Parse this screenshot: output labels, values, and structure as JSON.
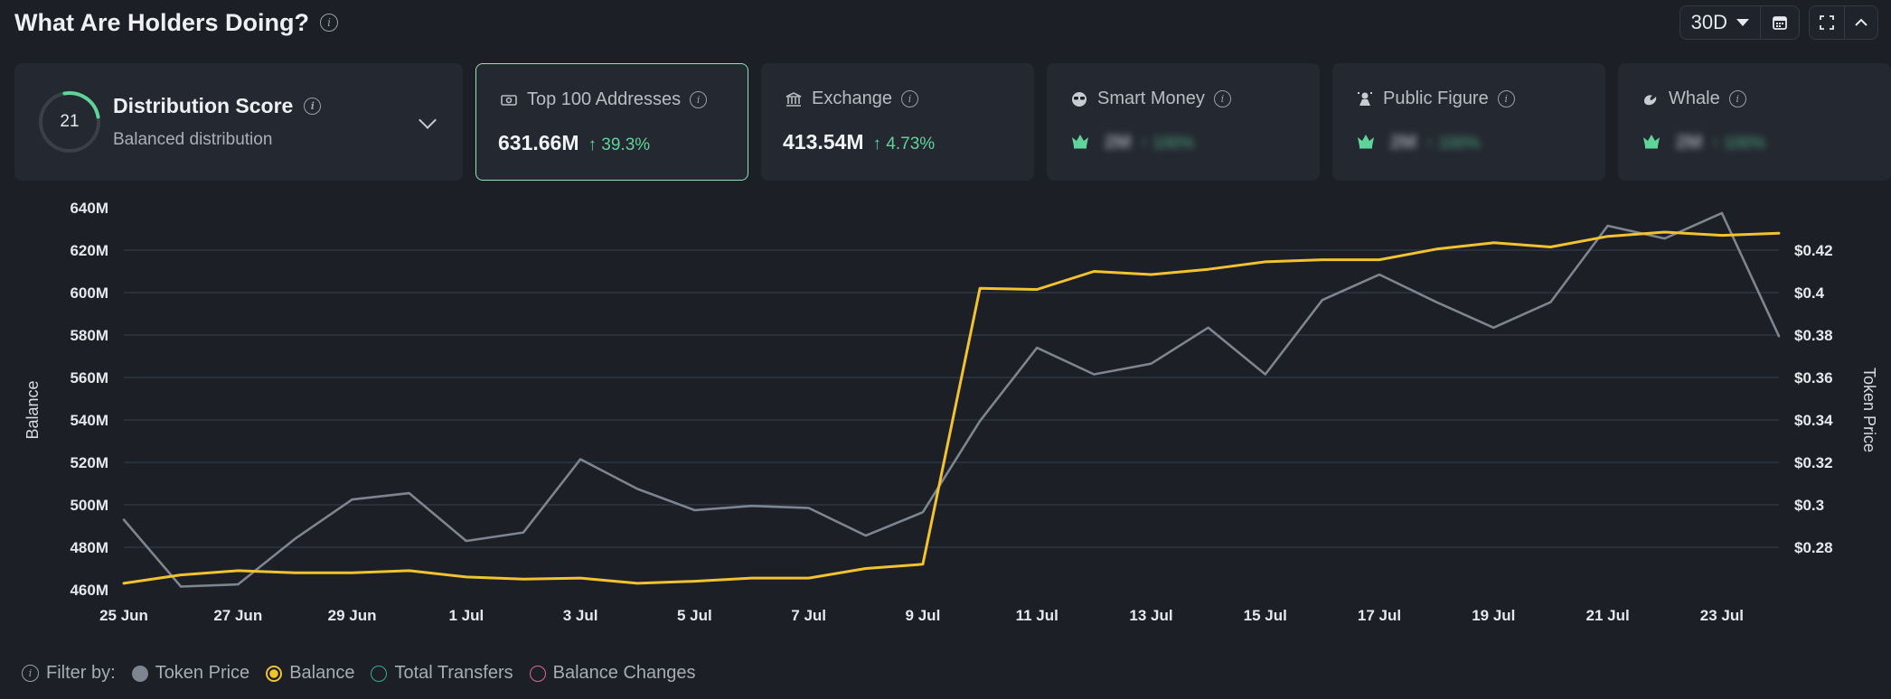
{
  "header": {
    "title": "What Are Holders Doing?"
  },
  "controls": {
    "range": "30D"
  },
  "distribution": {
    "score": "21",
    "title": "Distribution Score",
    "subtitle": "Balanced distribution"
  },
  "cards": [
    {
      "label": "Top 100 Addresses",
      "value": "631.66M",
      "change": "↑ 39.3%",
      "selected": true
    },
    {
      "label": "Exchange",
      "value": "413.54M",
      "change": "↑ 4.73%",
      "selected": false
    },
    {
      "label": "Smart Money",
      "blurred_value": "2M",
      "blurred_change": "↑ 100%"
    },
    {
      "label": "Public Figure",
      "blurred_value": "2M",
      "blurred_change": "↑ 100%"
    },
    {
      "label": "Whale",
      "blurred_value": "2M",
      "blurred_change": "↑ 100%"
    }
  ],
  "legend": {
    "filter_label": "Filter by:",
    "items": [
      {
        "name": "Token Price",
        "style": "filled",
        "color": "#7d8590"
      },
      {
        "name": "Balance",
        "style": "ring-fill",
        "color": "#f2c230"
      },
      {
        "name": "Total Transfers",
        "style": "ring",
        "color": "#3aa99f"
      },
      {
        "name": "Balance Changes",
        "style": "ring",
        "color": "#d46aa0"
      }
    ]
  },
  "chart_data": {
    "type": "line",
    "x": [
      "25 Jun",
      "26 Jun",
      "27 Jun",
      "28 Jun",
      "29 Jun",
      "30 Jun",
      "1 Jul",
      "2 Jul",
      "3 Jul",
      "4 Jul",
      "5 Jul",
      "6 Jul",
      "7 Jul",
      "8 Jul",
      "9 Jul",
      "10 Jul",
      "11 Jul",
      "12 Jul",
      "13 Jul",
      "14 Jul",
      "15 Jul",
      "16 Jul",
      "17 Jul",
      "18 Jul",
      "19 Jul",
      "20 Jul",
      "21 Jul",
      "22 Jul",
      "23 Jul",
      "24 Jul"
    ],
    "x_tick_labels": [
      "25 Jun",
      "27 Jun",
      "29 Jun",
      "1 Jul",
      "3 Jul",
      "5 Jul",
      "7 Jul",
      "9 Jul",
      "11 Jul",
      "13 Jul",
      "15 Jul",
      "17 Jul",
      "19 Jul",
      "21 Jul",
      "23 Jul"
    ],
    "y_left": {
      "label": "Balance",
      "range": [
        460,
        640
      ],
      "ticks": [
        "460M",
        "480M",
        "500M",
        "520M",
        "540M",
        "560M",
        "580M",
        "600M",
        "620M",
        "640M"
      ]
    },
    "y_right": {
      "label": "Token Price",
      "range": [
        0.26,
        0.44
      ],
      "ticks": [
        "$0.28",
        "$0.3",
        "$0.32",
        "$0.34",
        "$0.36",
        "$0.38",
        "$0.4",
        "$0.42"
      ]
    },
    "grid": true,
    "series": [
      {
        "name": "Balance",
        "axis": "left",
        "color": "#f2c230",
        "values": [
          463,
          467,
          469,
          468,
          468,
          469,
          466,
          465,
          465.5,
          463,
          464,
          465.5,
          465.5,
          470,
          472,
          602,
          601.5,
          610,
          608.5,
          611,
          614.5,
          615.5,
          615.5,
          620.5,
          623.5,
          621.5,
          626.5,
          628.5,
          627,
          628
        ]
      },
      {
        "name": "Token Price",
        "axis": "right",
        "color": "#7d8590",
        "values": [
          0.293,
          0.2615,
          0.2625,
          0.284,
          0.3025,
          0.3055,
          0.283,
          0.287,
          0.3215,
          0.3075,
          0.2975,
          0.2995,
          0.2985,
          0.2855,
          0.2965,
          0.3395,
          0.374,
          0.3615,
          0.3665,
          0.3835,
          0.3615,
          0.3965,
          0.4085,
          0.3955,
          0.3835,
          0.3955,
          0.4315,
          0.4255,
          0.4375,
          0.3795
        ]
      }
    ]
  }
}
